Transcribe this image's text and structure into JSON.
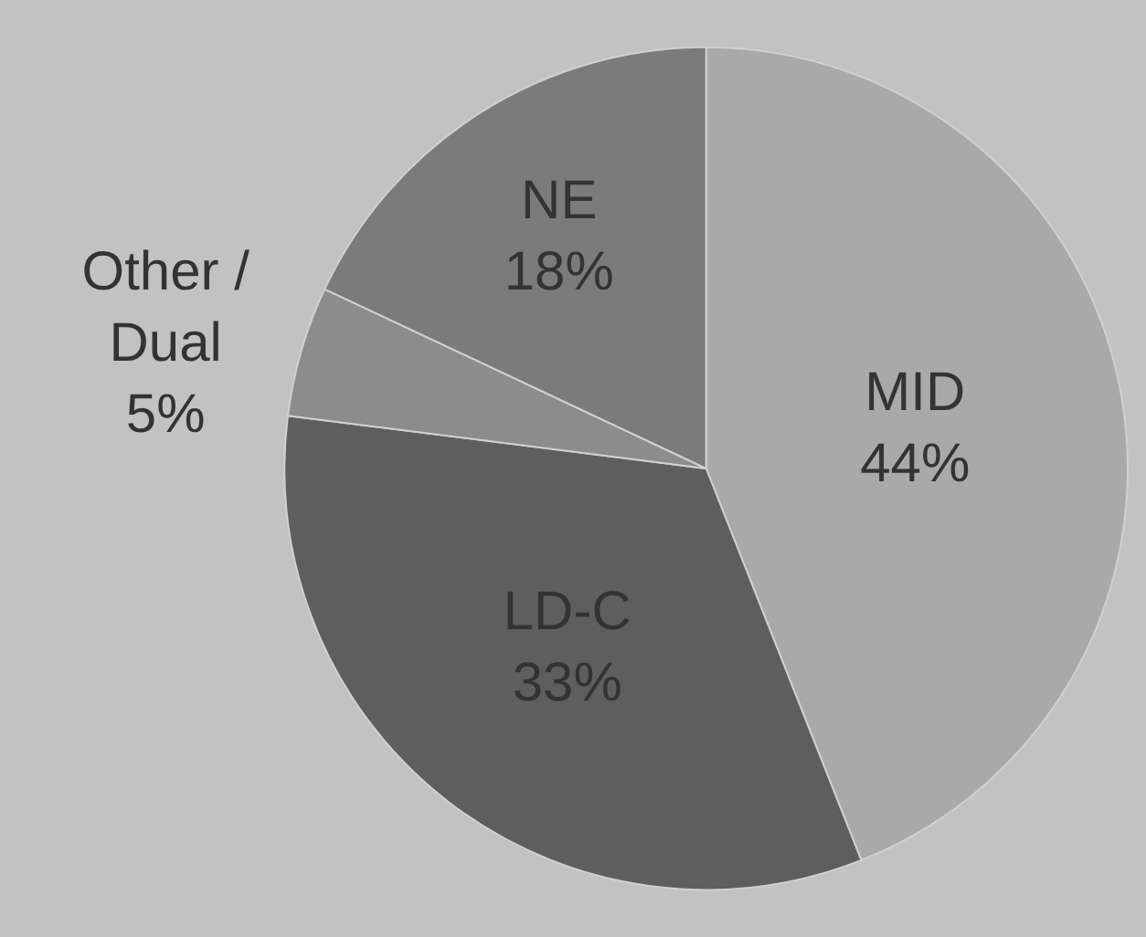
{
  "chart_data": {
    "type": "pie",
    "categories": [
      "MID",
      "LD-C",
      "Other / Dual",
      "NE"
    ],
    "values": [
      44,
      33,
      5,
      18
    ],
    "value_labels": [
      "44%",
      "33%",
      "5%",
      "18%"
    ],
    "colors": [
      "#a9a9a9",
      "#5e5e5e",
      "#8c8c8c",
      "#7b7b7b"
    ],
    "legend": false
  }
}
